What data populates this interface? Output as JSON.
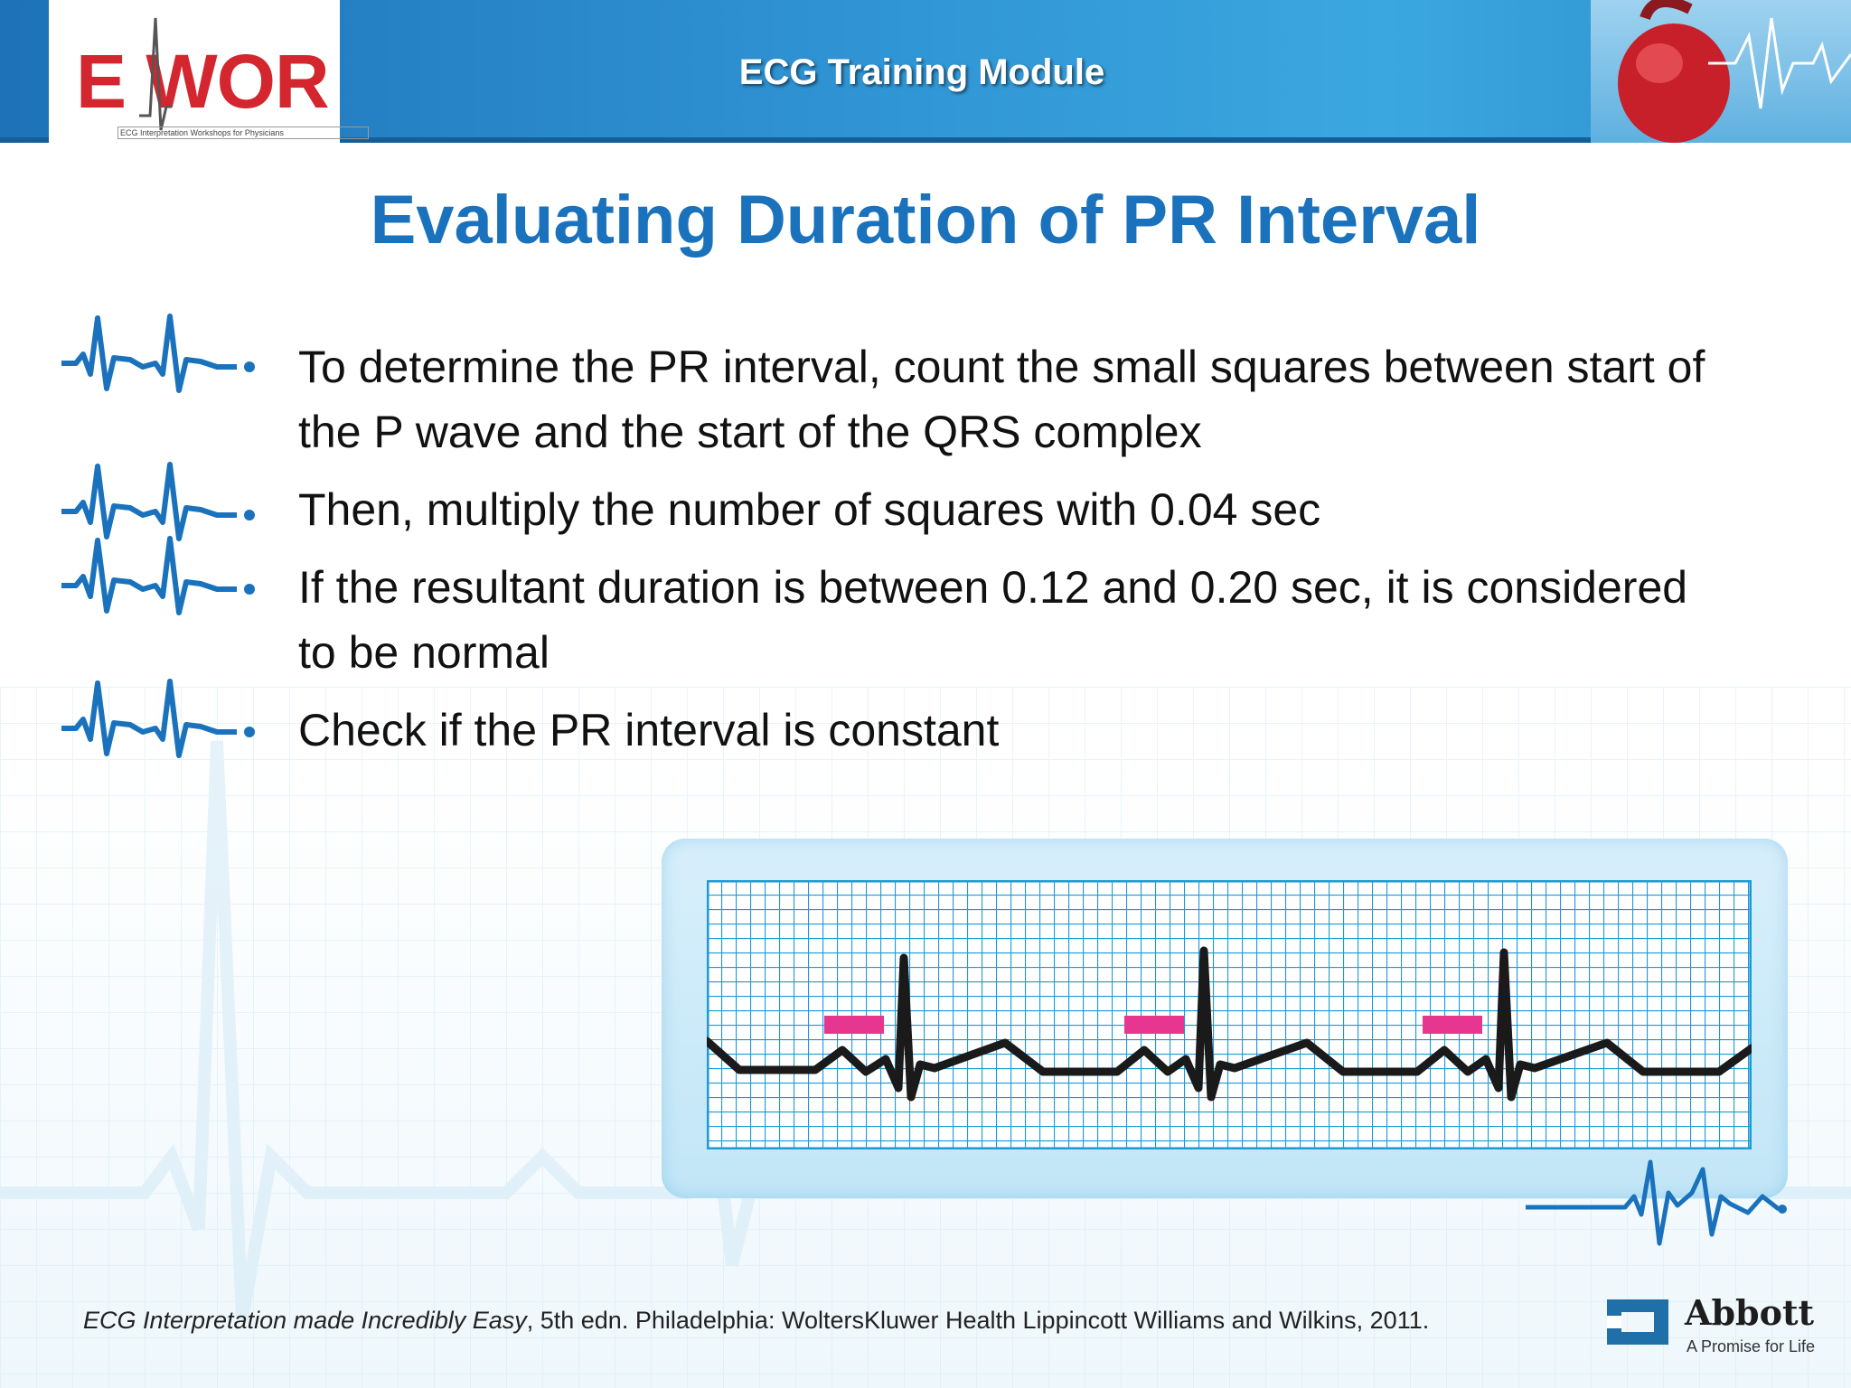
{
  "header": {
    "logo_text": "E WOR",
    "logo_subtext": "ECG Interpretation Workshops for Physicians",
    "title": "ECG Training Module"
  },
  "slide": {
    "title": "Evaluating Duration of PR Interval",
    "bullets": [
      "To determine the PR interval, count the small squares between start of the P wave and the start of the QRS complex",
      "Then, multiply the number of squares with 0.04 sec",
      "If the resultant duration is between 0.12 and 0.20 sec, it is considered to be normal",
      "Check if the PR interval is constant"
    ]
  },
  "figure": {
    "description_icon": "ecg-strip",
    "marker_color": "#e6368f",
    "grid_color": "#1a9ad6"
  },
  "footer": {
    "citation_title": "ECG Interpretation made Incredibly Easy",
    "citation_rest": ", 5th edn. Philadelphia: WoltersKluwer Health Lippincott Williams and Wilkins, 2011.",
    "brand": "Abbott",
    "tagline": "A Promise for Life"
  },
  "colors": {
    "title_blue": "#1a72bd",
    "header_blue": "#2f93d3",
    "logo_red": "#d3262e"
  }
}
